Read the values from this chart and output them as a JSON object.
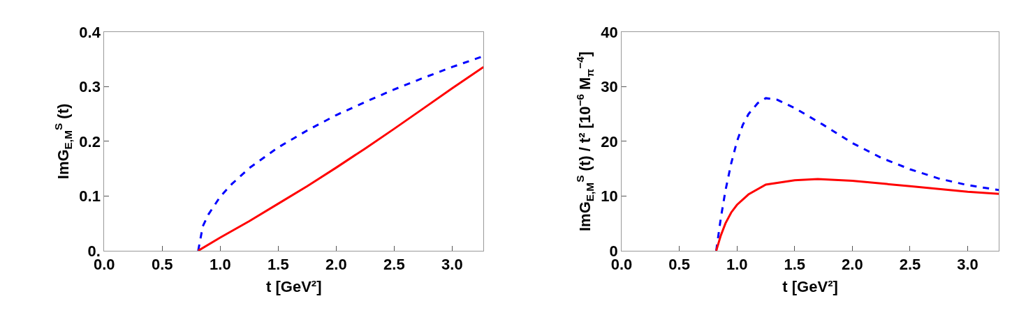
{
  "chart_data": [
    {
      "type": "line",
      "xlabel": "t [GeV²]",
      "ylabel": "ImG$_{E,M}$$^{S}$ (t)",
      "xlim": [
        0,
        3.27
      ],
      "ylim": [
        0,
        0.4
      ],
      "xticks": [
        {
          "value": 0,
          "label": "0.0"
        },
        0.5,
        {
          "value": 1,
          "label": "1.0"
        },
        1.5,
        {
          "value": 2,
          "label": "2.0"
        },
        2.5,
        {
          "value": 3,
          "label": "3.0"
        }
      ],
      "yticks": [
        {
          "value": 0,
          "label": "0."
        },
        0.1,
        0.2,
        0.3,
        0.4
      ],
      "series": [
        {
          "color": "#0000ff",
          "line_style": "dashed",
          "x": [
            0.81,
            0.85,
            0.9,
            1.0,
            1.1,
            1.25,
            1.5,
            1.75,
            2.0,
            2.25,
            2.5,
            2.75,
            3.0,
            3.27
          ],
          "values": [
            0,
            0.045,
            0.067,
            0.099,
            0.122,
            0.151,
            0.189,
            0.22,
            0.248,
            0.272,
            0.295,
            0.316,
            0.336,
            0.356
          ]
        },
        {
          "color": "#ff0000",
          "line_style": "solid",
          "x": [
            0.81,
            1.0,
            1.25,
            1.5,
            1.75,
            2.0,
            2.25,
            2.5,
            2.75,
            3.0,
            3.27
          ],
          "values": [
            0,
            0.024,
            0.054,
            0.086,
            0.118,
            0.152,
            0.187,
            0.223,
            0.26,
            0.297,
            0.336
          ]
        }
      ]
    },
    {
      "type": "line",
      "xlabel": "t [GeV²]",
      "ylabel": "ImG$_{E,M}$$^{S}$ (t) / t² [10$^{−6}$ M$_{π}$$^{−4}$]",
      "xlim": [
        0,
        3.27
      ],
      "ylim": [
        0,
        40
      ],
      "xticks": [
        {
          "value": 0,
          "label": "0.0"
        },
        0.5,
        {
          "value": 1,
          "label": "1.0"
        },
        1.5,
        {
          "value": 2,
          "label": "2.0"
        },
        2.5,
        {
          "value": 3,
          "label": "3.0"
        }
      ],
      "yticks": [
        0,
        10,
        20,
        30,
        40
      ],
      "series": [
        {
          "color": "#0000ff",
          "line_style": "dashed",
          "x": [
            0.82,
            0.86,
            0.9,
            0.95,
            1.0,
            1.05,
            1.1,
            1.18,
            1.25,
            1.35,
            1.5,
            1.75,
            2.0,
            2.25,
            2.5,
            2.75,
            3.0,
            3.27
          ],
          "values": [
            0,
            6,
            11,
            16,
            20,
            23,
            25,
            27,
            27.9,
            27.6,
            26.1,
            23,
            19.7,
            17,
            14.9,
            13.2,
            12,
            11.1
          ]
        },
        {
          "color": "#ff0000",
          "line_style": "solid",
          "x": [
            0.82,
            0.86,
            0.9,
            0.95,
            1.0,
            1.1,
            1.25,
            1.5,
            1.7,
            2.0,
            2.5,
            3.0,
            3.27
          ],
          "values": [
            0,
            2.8,
            5,
            7,
            8.4,
            10.3,
            12.1,
            12.9,
            13.1,
            12.8,
            11.8,
            10.8,
            10.4
          ]
        }
      ]
    }
  ]
}
